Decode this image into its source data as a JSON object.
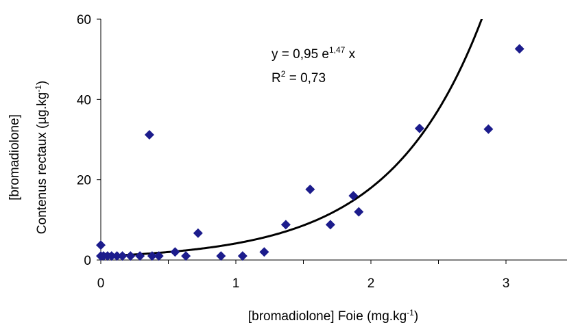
{
  "chart_data": {
    "type": "scatter",
    "title": "",
    "xlabel": {
      "text": "[bromadiolone] Foie (mg.kg",
      "sup": "-1",
      "suffix": ")"
    },
    "ylabel_line1": "[bromadiolone]",
    "ylabel_line2": {
      "text": "Contenus rectaux (µg.kg",
      "sup": "-1",
      "suffix": ")"
    },
    "xlim": [
      0,
      3.5
    ],
    "ylim": [
      0,
      60
    ],
    "xticks": [
      0,
      1,
      2,
      3
    ],
    "yticks": [
      0,
      20,
      40,
      60
    ],
    "x_tick_labels": [
      "0",
      "1",
      "2",
      "3"
    ],
    "y_tick_labels": [
      "0",
      "20",
      "40",
      "60"
    ],
    "grid": false,
    "legend": "none",
    "marker": "diamond",
    "marker_color": "#1c1c8c",
    "trendline_color": "#000000",
    "trendline": {
      "type": "exponential",
      "a": 0.95,
      "b": 1.47
    },
    "equation": {
      "prefix": "y = 0,95 e",
      "sup": "1,47",
      "suffix": " x"
    },
    "r2": {
      "prefix": "R",
      "sup": "2",
      "suffix": " = 0,73"
    },
    "points": [
      [
        0.0,
        3.7
      ],
      [
        0.0,
        1.0
      ],
      [
        0.02,
        1.0
      ],
      [
        0.05,
        1.0
      ],
      [
        0.08,
        1.0
      ],
      [
        0.12,
        1.0
      ],
      [
        0.16,
        1.0
      ],
      [
        0.22,
        1.0
      ],
      [
        0.29,
        1.0
      ],
      [
        0.36,
        31.2
      ],
      [
        0.38,
        1.0
      ],
      [
        0.43,
        1.0
      ],
      [
        0.55,
        2.0
      ],
      [
        0.63,
        1.0
      ],
      [
        0.72,
        6.7
      ],
      [
        0.89,
        1.0
      ],
      [
        1.05,
        1.0
      ],
      [
        1.21,
        2.0
      ],
      [
        1.37,
        8.8
      ],
      [
        1.55,
        17.6
      ],
      [
        1.7,
        8.8
      ],
      [
        1.87,
        16.0
      ],
      [
        1.91,
        12.0
      ],
      [
        2.36,
        32.8
      ],
      [
        2.87,
        32.6
      ],
      [
        3.1,
        52.6
      ]
    ]
  }
}
